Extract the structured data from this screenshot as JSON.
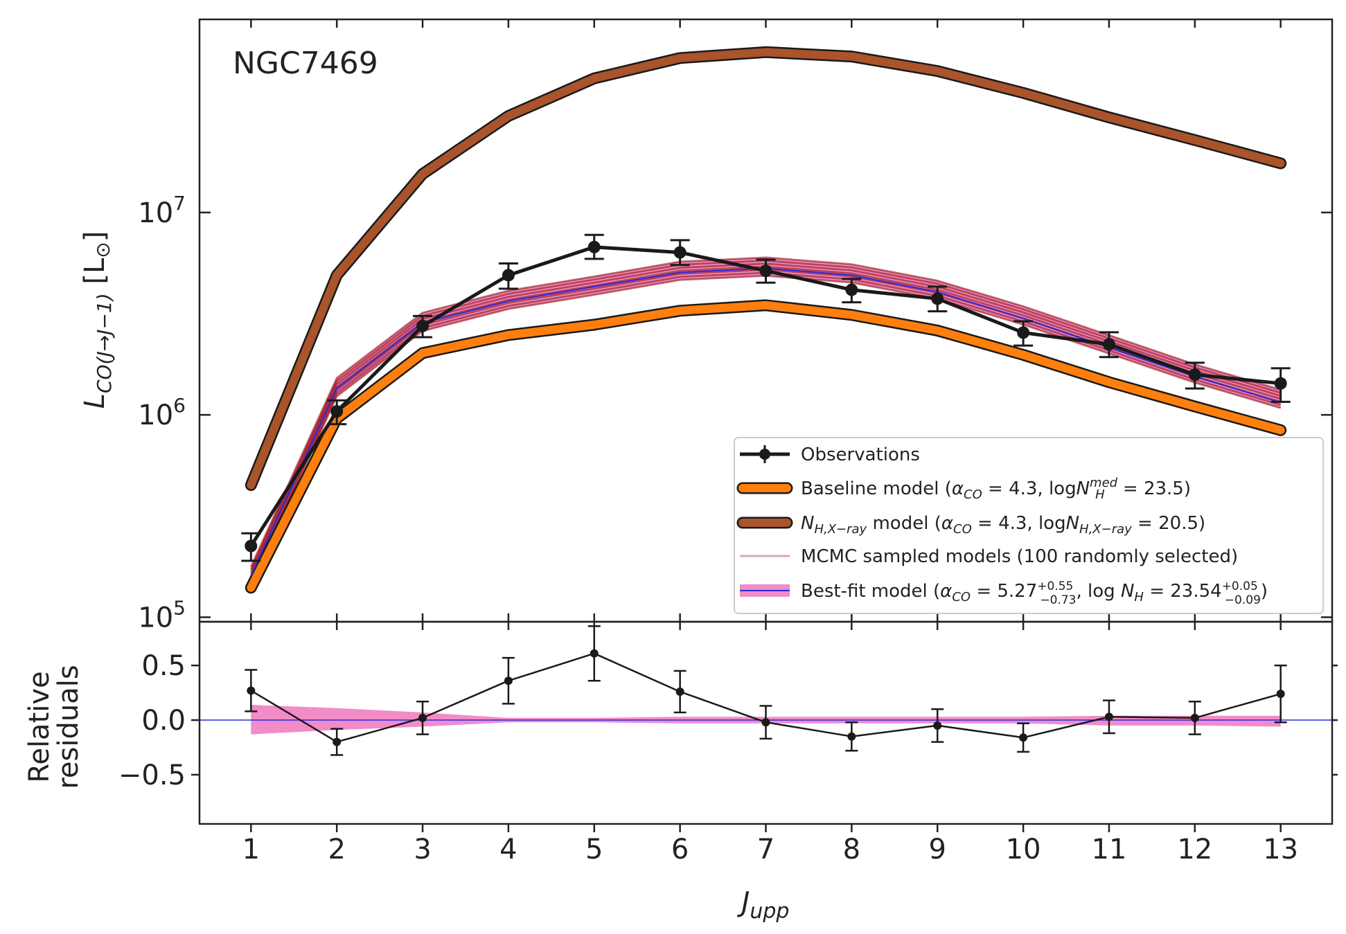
{
  "chart_data": [
    {
      "type": "line",
      "panel": "main",
      "title": "NGC7469",
      "ylabel": "L_CO(J→J−1) [L⊙]",
      "yscale": "log",
      "ylim": [
        95000,
        90000000
      ],
      "xlim": [
        0.4,
        13.6
      ],
      "x": [
        1,
        2,
        3,
        4,
        5,
        6,
        7,
        8,
        9,
        10,
        11,
        12,
        13
      ],
      "y_ticks": [
        {
          "value": 100000,
          "base": "10",
          "exp": "5"
        },
        {
          "value": 1000000,
          "base": "10",
          "exp": "6"
        },
        {
          "value": 10000000,
          "base": "10",
          "exp": "7"
        }
      ],
      "series": [
        {
          "name": "Observations",
          "color": "#1a1a1a",
          "values": [
            225000,
            1040000,
            2750000,
            4900000,
            6750000,
            6350000,
            5150000,
            4150000,
            3750000,
            2550000,
            2230000,
            1580000,
            1430000
          ],
          "err_low": [
            35000,
            140000,
            330000,
            700000,
            850000,
            850000,
            650000,
            550000,
            500000,
            350000,
            300000,
            230000,
            270000
          ],
          "err_high": [
            35000,
            140000,
            330000,
            700000,
            1000000,
            950000,
            700000,
            550000,
            550000,
            350000,
            330000,
            230000,
            270000
          ]
        },
        {
          "name": "Baseline model",
          "color": "#ff7f0e",
          "values": [
            140000,
            960000,
            2020000,
            2480000,
            2790000,
            3270000,
            3480000,
            3120000,
            2610000,
            1980000,
            1450000,
            1100000,
            840000
          ]
        },
        {
          "name": "N_H,X-ray model",
          "color": "#a9542a",
          "values": [
            450000,
            4900000,
            15500000,
            30000000,
            46000000,
            58000000,
            62000000,
            59000000,
            50000000,
            39000000,
            29500000,
            22800000,
            17500000
          ]
        },
        {
          "name": "MCMC sampled models",
          "color": "#8b0000",
          "values": [
            160000,
            1370000,
            2880000,
            3700000,
            4350000,
            5150000,
            5400000,
            5000000,
            4150000,
            3100000,
            2230000,
            1600000,
            1200000
          ]
        },
        {
          "name": "Best-fit model",
          "color": "#2a2ad8",
          "values": [
            160000,
            1350000,
            2850000,
            3650000,
            4300000,
            5050000,
            5300000,
            4900000,
            4050000,
            3000000,
            2150000,
            1550000,
            1150000
          ]
        }
      ],
      "legend": {
        "position": "lower-right",
        "entries": [
          {
            "label": "Observations"
          },
          {
            "label": "Baseline model (α_CO = 4.3, logN_H^med = 23.5)"
          },
          {
            "label": "N_H,X-ray model (α_CO = 4.3, logN_H,X-ray = 20.5)"
          },
          {
            "label": "MCMC sampled models (100 randomly selected)"
          },
          {
            "label": "Best-fit model (α_CO = 5.27 +0.55 −0.73, log N_H = 23.54 +0.05 −0.09)"
          }
        ]
      }
    },
    {
      "type": "line",
      "panel": "residuals",
      "xlabel": "J_upp",
      "ylabel": "Relative residuals",
      "ylim": [
        -0.95,
        0.9
      ],
      "xlim": [
        0.4,
        13.6
      ],
      "x": [
        1,
        2,
        3,
        4,
        5,
        6,
        7,
        8,
        9,
        10,
        11,
        12,
        13
      ],
      "x_ticks": [
        "1",
        "2",
        "3",
        "4",
        "5",
        "6",
        "7",
        "8",
        "9",
        "10",
        "11",
        "12",
        "13"
      ],
      "y_ticks": [
        {
          "value": 0.5,
          "label": "0.5"
        },
        {
          "value": 0.0,
          "label": "0.0"
        },
        {
          "value": -0.5,
          "label": "−0.5"
        }
      ],
      "series": [
        {
          "name": "Relative residuals",
          "color": "#1a1a1a",
          "values": [
            0.27,
            -0.2,
            0.02,
            0.36,
            0.61,
            0.26,
            -0.02,
            -0.15,
            -0.05,
            -0.16,
            0.03,
            0.02,
            0.24
          ],
          "err": [
            0.19,
            0.12,
            0.15,
            0.21,
            0.25,
            0.19,
            0.15,
            0.13,
            0.15,
            0.13,
            0.15,
            0.15,
            0.26
          ]
        },
        {
          "name": "Best-fit uncertainty band",
          "color": "#f28cc8",
          "upper": [
            0.14,
            0.11,
            0.07,
            0.02,
            0.02,
            0.03,
            0.03,
            0.03,
            0.03,
            0.03,
            0.04,
            0.04,
            0.04
          ],
          "lower": [
            -0.13,
            -0.09,
            -0.06,
            -0.02,
            -0.02,
            -0.03,
            -0.03,
            -0.03,
            -0.03,
            -0.03,
            -0.05,
            -0.05,
            -0.06
          ]
        }
      ],
      "zero_line_color": "#2a2ad8"
    }
  ]
}
